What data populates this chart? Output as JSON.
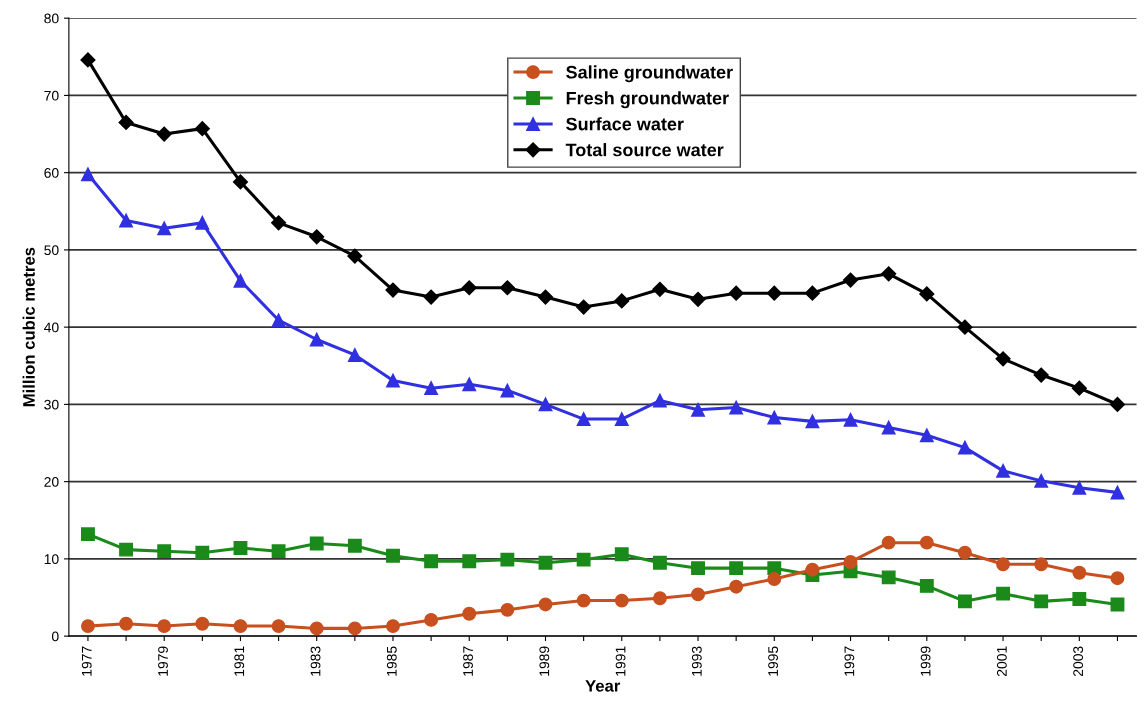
{
  "chart_data": {
    "type": "line",
    "xlabel": "Year",
    "ylabel": "Million cubic metres",
    "categories": [
      "1977",
      null,
      "1979",
      null,
      "1981",
      null,
      "1983",
      null,
      "1985",
      null,
      "1987",
      null,
      "1989",
      null,
      "1991",
      null,
      "1993",
      null,
      "1995",
      null,
      "1997",
      null,
      "1999",
      null,
      "2001",
      null,
      "2003",
      null
    ],
    "series": [
      {
        "name": "Saline groundwater",
        "color": "#c8501e",
        "marker": "circle",
        "values": [
          1.3,
          1.6,
          1.3,
          1.6,
          1.3,
          1.3,
          1.0,
          1.0,
          1.3,
          2.1,
          2.9,
          3.4,
          4.1,
          4.6,
          4.6,
          4.9,
          5.4,
          6.4,
          7.4,
          8.6,
          9.6,
          12.1,
          12.1,
          10.8,
          9.3,
          9.3,
          8.2,
          7.5
        ]
      },
      {
        "name": "Fresh groundwater",
        "color": "#1a8a1a",
        "marker": "square",
        "values": [
          13.2,
          11.2,
          11.0,
          10.8,
          11.4,
          11.0,
          12.0,
          11.7,
          10.4,
          9.7,
          9.7,
          9.9,
          9.5,
          9.9,
          10.6,
          9.5,
          8.8,
          8.8,
          8.8,
          7.9,
          8.4,
          7.6,
          6.5,
          4.5,
          5.5,
          4.5,
          4.8,
          4.1
        ]
      },
      {
        "name": "Surface water",
        "color": "#3030e0",
        "marker": "triangle",
        "values": [
          59.8,
          53.8,
          52.8,
          53.5,
          46.0,
          40.9,
          38.4,
          36.4,
          33.1,
          32.1,
          32.6,
          31.8,
          30.0,
          28.1,
          28.1,
          30.5,
          29.3,
          29.6,
          28.3,
          27.8,
          28.0,
          27.0,
          26.0,
          24.4,
          21.4,
          20.1,
          19.2,
          18.6
        ]
      },
      {
        "name": "Total source water",
        "color": "#000000",
        "marker": "diamond",
        "values": [
          74.6,
          66.5,
          65.0,
          65.7,
          58.8,
          53.5,
          51.7,
          49.2,
          44.8,
          43.9,
          45.1,
          45.1,
          43.9,
          42.6,
          43.4,
          44.9,
          43.6,
          44.4,
          44.4,
          44.4,
          46.1,
          46.9,
          44.3,
          40.0,
          35.9,
          33.8,
          32.1,
          30.0
        ]
      }
    ],
    "ylim": [
      0,
      80
    ],
    "yticks": [
      0,
      10,
      20,
      30,
      40,
      50,
      60,
      70,
      80
    ],
    "grid": "y",
    "legend": "top"
  }
}
